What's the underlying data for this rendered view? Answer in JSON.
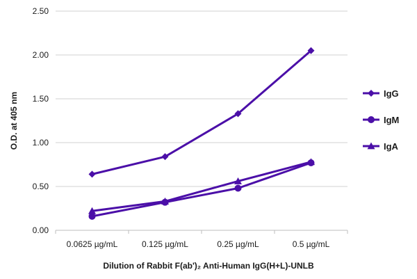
{
  "chart_data": {
    "type": "line",
    "xlabel": "Dilution of Rabbit F(ab')₂ Anti-Human IgG(H+L)-UNLB",
    "ylabel": "O.D. at 405 nm",
    "categories": [
      "0.0625 µg/mL",
      "0.125 µg/mL",
      "0.25 µg/mL",
      "0.5 µg/mL"
    ],
    "ylim": [
      0,
      2.5
    ],
    "yticks": [
      "0.00",
      "0.50",
      "1.00",
      "1.50",
      "2.00",
      "2.50"
    ],
    "grid": true,
    "legend_position": "right",
    "series": [
      {
        "name": "IgG",
        "marker": "diamond",
        "color": "#4b0fa8",
        "values": [
          0.64,
          0.84,
          1.33,
          2.05
        ]
      },
      {
        "name": "IgM",
        "marker": "circle",
        "color": "#4b0fa8",
        "values": [
          0.16,
          0.32,
          0.48,
          0.77
        ]
      },
      {
        "name": "IgA",
        "marker": "triangle",
        "color": "#4b0fa8",
        "values": [
          0.22,
          0.33,
          0.56,
          0.78
        ]
      }
    ]
  }
}
